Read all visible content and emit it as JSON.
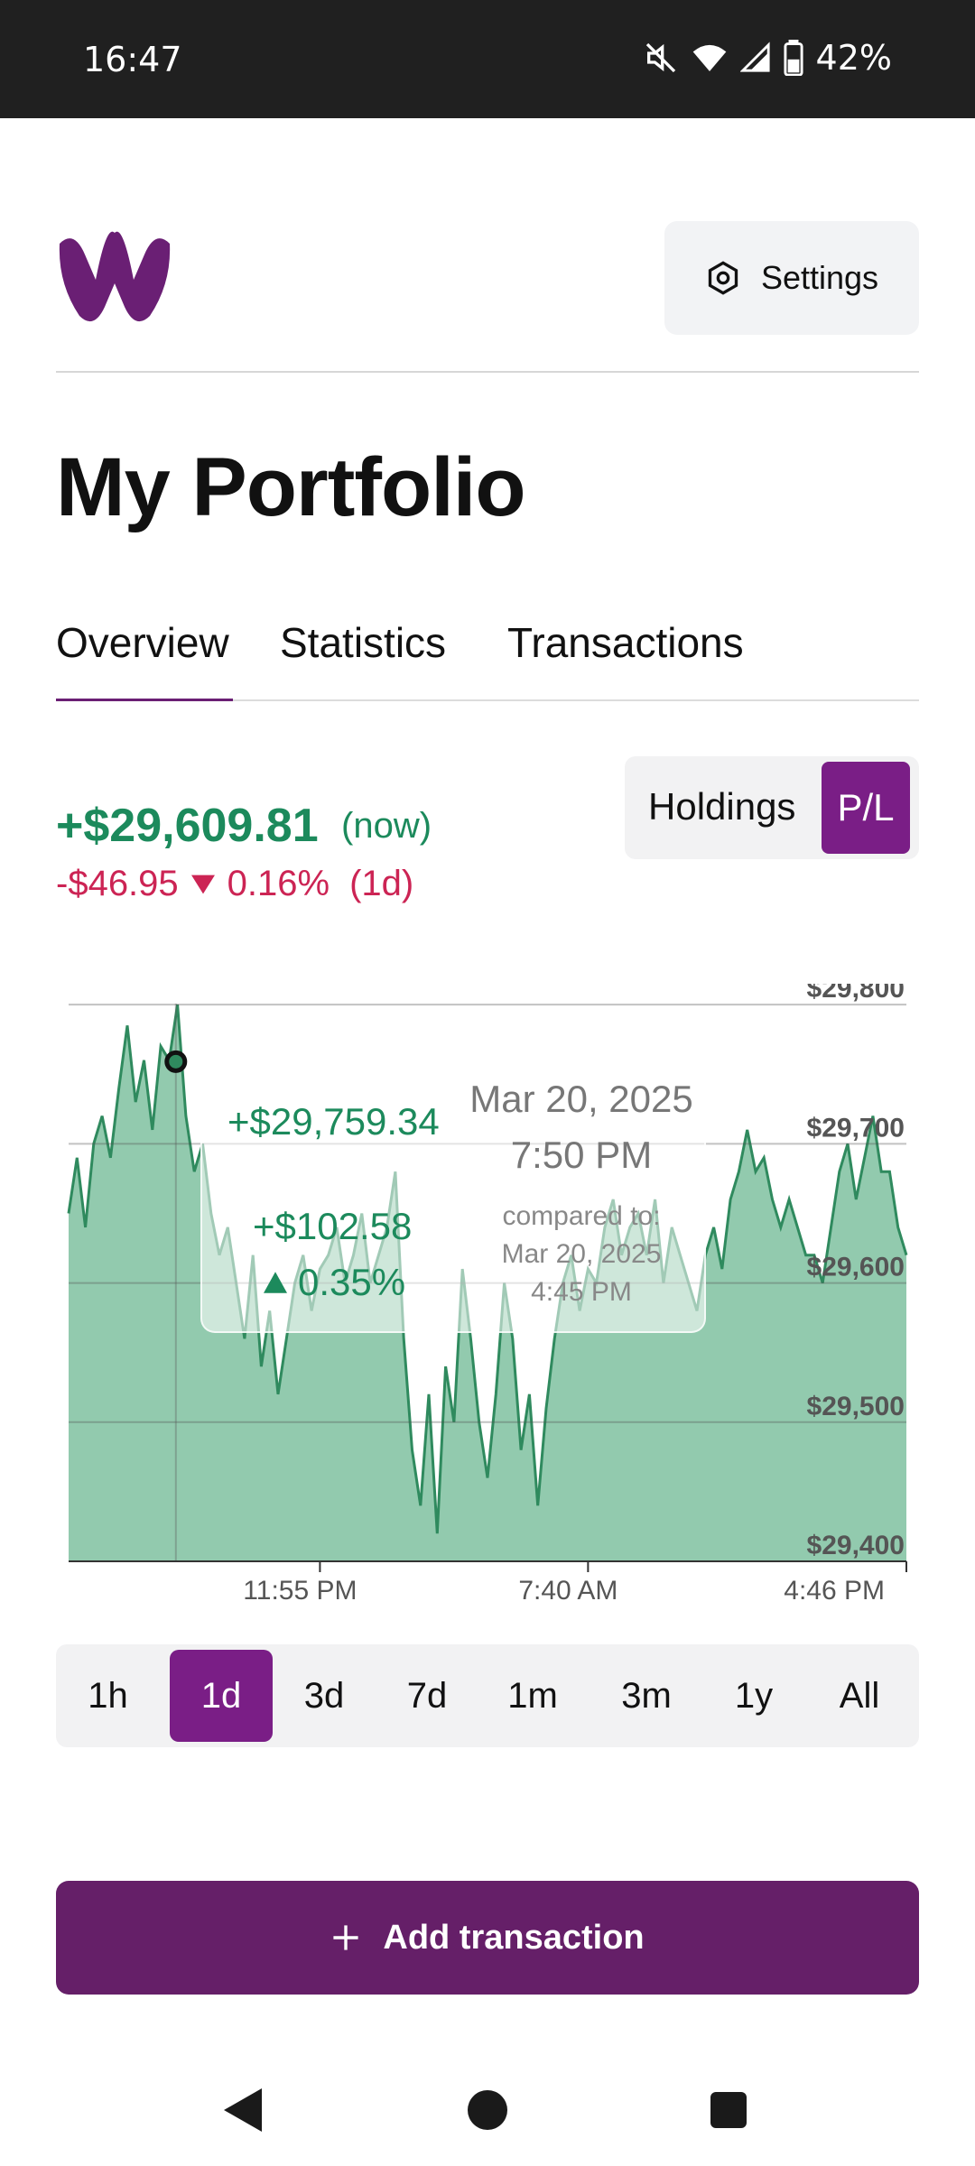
{
  "status_bar": {
    "time": "16:47",
    "battery": "42%"
  },
  "header": {
    "settings_label": "Settings"
  },
  "page": {
    "title": "My Portfolio"
  },
  "tabs": [
    {
      "label": "Overview",
      "active": true
    },
    {
      "label": "Statistics",
      "active": false
    },
    {
      "label": "Transactions",
      "active": false
    }
  ],
  "summary": {
    "value": "+$29,609.81",
    "value_suffix": "(now)",
    "change_amount": "-$46.95",
    "change_percent": "0.16%",
    "change_period": "(1d)"
  },
  "view_toggle": {
    "holdings_label": "Holdings",
    "pl_label": "P/L",
    "selected": "P/L"
  },
  "chart_data": {
    "type": "area",
    "y_tick_labels": [
      "$29,800",
      "$29,700",
      "$29,600",
      "$29,500",
      "$29,400"
    ],
    "y_ticks": [
      29800,
      29700,
      29600,
      29500,
      29400
    ],
    "ylim": [
      29400,
      29815
    ],
    "x_tick_labels": [
      "11:55 PM",
      "7:40 AM",
      "4:46 PM"
    ],
    "x_tick_positions": [
      0.3,
      0.62,
      1.0
    ],
    "series": [
      {
        "x": [
          0,
          0.01,
          0.02,
          0.03,
          0.04,
          0.05,
          0.06,
          0.07,
          0.08,
          0.09,
          0.1,
          0.11,
          0.12,
          0.13,
          0.14,
          0.15,
          0.16,
          0.17,
          0.18,
          0.19,
          0.2,
          0.21,
          0.22,
          0.23,
          0.24,
          0.25,
          0.26,
          0.27,
          0.28,
          0.29,
          0.3,
          0.31,
          0.32,
          0.33,
          0.34,
          0.35,
          0.36,
          0.37,
          0.38,
          0.39,
          0.4,
          0.41,
          0.42,
          0.43,
          0.44,
          0.45,
          0.46,
          0.47,
          0.48,
          0.49,
          0.5,
          0.51,
          0.52,
          0.53,
          0.54,
          0.55,
          0.56,
          0.57,
          0.58,
          0.59,
          0.6,
          0.61,
          0.62,
          0.63,
          0.64,
          0.65,
          0.66,
          0.67,
          0.68,
          0.69,
          0.7,
          0.71,
          0.72,
          0.73,
          0.74,
          0.75,
          0.76,
          0.77,
          0.78,
          0.79,
          0.8,
          0.81,
          0.82,
          0.83,
          0.84,
          0.85,
          0.86,
          0.87,
          0.88,
          0.89,
          0.9,
          0.91,
          0.92,
          0.93,
          0.94,
          0.95,
          0.96,
          0.97,
          0.98,
          0.99,
          1.0
        ],
        "values": [
          29650,
          29690,
          29640,
          29700,
          29720,
          29690,
          29740,
          29785,
          29730,
          29760,
          29710,
          29770,
          29760,
          29800,
          29720,
          29680,
          29700,
          29650,
          29620,
          29640,
          29600,
          29560,
          29620,
          29540,
          29580,
          29520,
          29560,
          29600,
          29620,
          29580,
          29610,
          29620,
          29640,
          29600,
          29620,
          29650,
          29600,
          29620,
          29640,
          29680,
          29560,
          29480,
          29440,
          29520,
          29420,
          29540,
          29500,
          29610,
          29560,
          29500,
          29460,
          29520,
          29600,
          29560,
          29480,
          29520,
          29440,
          29510,
          29560,
          29600,
          29620,
          29580,
          29610,
          29600,
          29640,
          29660,
          29620,
          29640,
          29650,
          29620,
          29660,
          29600,
          29640,
          29620,
          29600,
          29580,
          29620,
          29640,
          29610,
          29660,
          29680,
          29710,
          29680,
          29690,
          29660,
          29640,
          29660,
          29640,
          29620,
          29620,
          29600,
          29640,
          29680,
          29700,
          29660,
          29690,
          29720,
          29680,
          29680,
          29640,
          29620
        ]
      }
    ],
    "series_color": "#2f8a5e",
    "fill_color": "#92caae",
    "grid": true,
    "tooltip": {
      "value": "+$29,759.34",
      "date": "Mar 20, 2025",
      "time": "7:50 PM",
      "delta": "+$102.58",
      "percent": "0.35%",
      "compared_label": "compared to:",
      "compared_date": "Mar 20, 2025",
      "compared_time": "4:45 PM"
    }
  },
  "timeframes": [
    {
      "label": "1h",
      "active": false
    },
    {
      "label": "1d",
      "active": true
    },
    {
      "label": "3d",
      "active": false
    },
    {
      "label": "7d",
      "active": false
    },
    {
      "label": "1m",
      "active": false
    },
    {
      "label": "3m",
      "active": false
    },
    {
      "label": "1y",
      "active": false
    },
    {
      "label": "All",
      "active": false
    }
  ],
  "actions": {
    "add_transaction_label": "Add transaction"
  },
  "colors": {
    "brand": "#7a1e86",
    "positive": "#1c8a5c",
    "negative": "#cc2454"
  }
}
